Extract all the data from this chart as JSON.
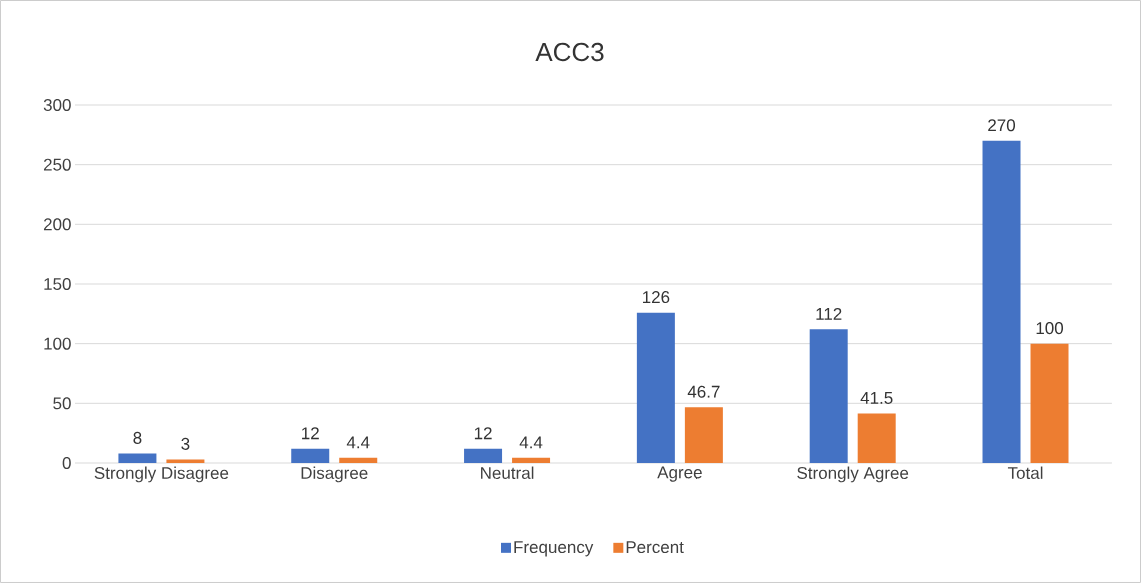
{
  "chart_data": {
    "type": "bar",
    "title": "ACC3",
    "categories": [
      "Strongly Disagree",
      "Disagree",
      "Neutral",
      "Agree",
      "Strongly Agree",
      "Total"
    ],
    "series": [
      {
        "name": "Frequency",
        "color": "#4472c4",
        "values": [
          8,
          12,
          12,
          126,
          112,
          270
        ]
      },
      {
        "name": "Percent",
        "color": "#ed7d31",
        "values": [
          3,
          4.4,
          4.4,
          46.7,
          41.5,
          100
        ]
      }
    ],
    "ylim": [
      0,
      300
    ],
    "yticks": [
      0,
      50,
      100,
      150,
      200,
      250,
      300
    ],
    "grid": "y",
    "legend": "bottom",
    "data_labels": true
  }
}
